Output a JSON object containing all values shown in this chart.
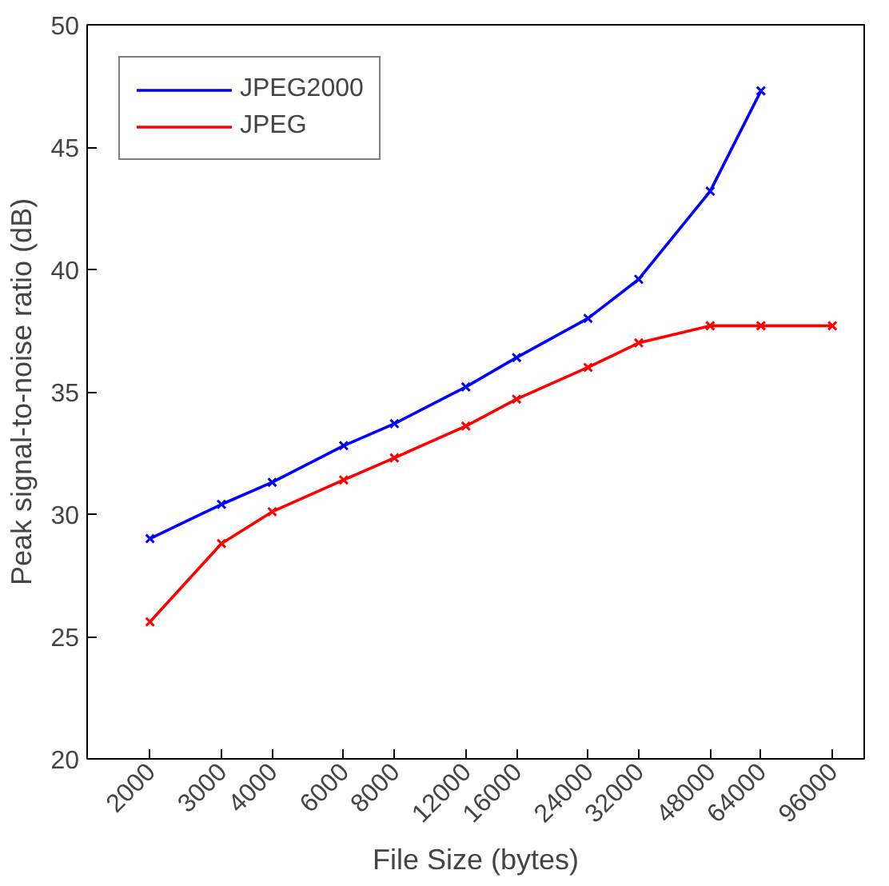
{
  "chart_data": {
    "type": "line",
    "xlabel": "File Size (bytes)",
    "ylabel": "Peak signal-to-noise ratio (dB)",
    "log": "x",
    "marker": "cross",
    "line_style": "solid",
    "grid": false,
    "legend": "top left",
    "xlim": [
      1400,
      115000
    ],
    "xticks": [
      2000,
      3000,
      4000,
      6000,
      8000,
      12000,
      16000,
      24000,
      32000,
      48000,
      64000,
      96000
    ],
    "ylim": [
      20,
      50
    ],
    "yticks": [
      20,
      25,
      30,
      35,
      40,
      45,
      50
    ],
    "series": [
      {
        "name": "JPEG2000",
        "color": "#0000ff",
        "x": [
          2000,
          3000,
          4000,
          6000,
          8000,
          12000,
          16000,
          24000,
          32000,
          48000,
          64000
        ],
        "values": [
          29.0,
          30.4,
          31.3,
          32.8,
          33.7,
          35.2,
          36.4,
          38.0,
          39.6,
          43.2,
          47.3
        ]
      },
      {
        "name": "JPEG",
        "color": "#ff0000",
        "x": [
          2000,
          3000,
          4000,
          6000,
          8000,
          12000,
          16000,
          24000,
          32000,
          48000,
          64000,
          96000
        ],
        "values": [
          25.6,
          28.8,
          30.1,
          31.4,
          32.3,
          33.6,
          34.7,
          36.0,
          37.0,
          37.7,
          37.7,
          37.7
        ]
      }
    ]
  }
}
